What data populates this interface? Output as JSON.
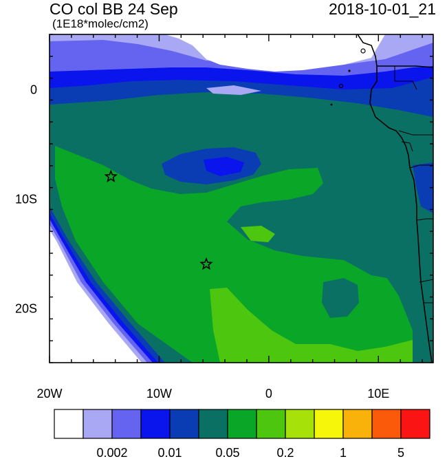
{
  "header": {
    "title": "CO col BB 24 Sep",
    "units": "(1E18*molec/cm2)",
    "datetime": "2018-10-01_21"
  },
  "map": {
    "lon_range": [
      -20,
      15
    ],
    "lat_range": [
      -25,
      5
    ],
    "x_ticks": [
      {
        "value": -20,
        "label": "20W"
      },
      {
        "value": -10,
        "label": "10W"
      },
      {
        "value": 0,
        "label": "0"
      },
      {
        "value": 10,
        "label": "10E"
      }
    ],
    "y_ticks": [
      {
        "value": 0,
        "label": "0"
      },
      {
        "value": -10,
        "label": "10S"
      },
      {
        "value": -20,
        "label": "20S"
      }
    ],
    "markers": [
      {
        "lon": -14.4,
        "lat": -8.0,
        "symbol": "star"
      },
      {
        "lon": -5.7,
        "lat": -16.0,
        "symbol": "star"
      }
    ]
  },
  "colorbar": {
    "colors": [
      "#ffffff",
      "#a8a8f5",
      "#6464f0",
      "#0a14ec",
      "#0a3cb4",
      "#0a7064",
      "#0aa628",
      "#4cc60e",
      "#a6e20a",
      "#f6f60a",
      "#f9b20a",
      "#fa5a0a",
      "#fa1414"
    ],
    "labels": [
      {
        "after_box": 2,
        "text": "0.002"
      },
      {
        "after_box": 4,
        "text": "0.01"
      },
      {
        "after_box": 6,
        "text": "0.05"
      },
      {
        "after_box": 8,
        "text": "0.2"
      },
      {
        "after_box": 10,
        "text": "1"
      },
      {
        "after_box": 12,
        "text": "5"
      }
    ]
  }
}
